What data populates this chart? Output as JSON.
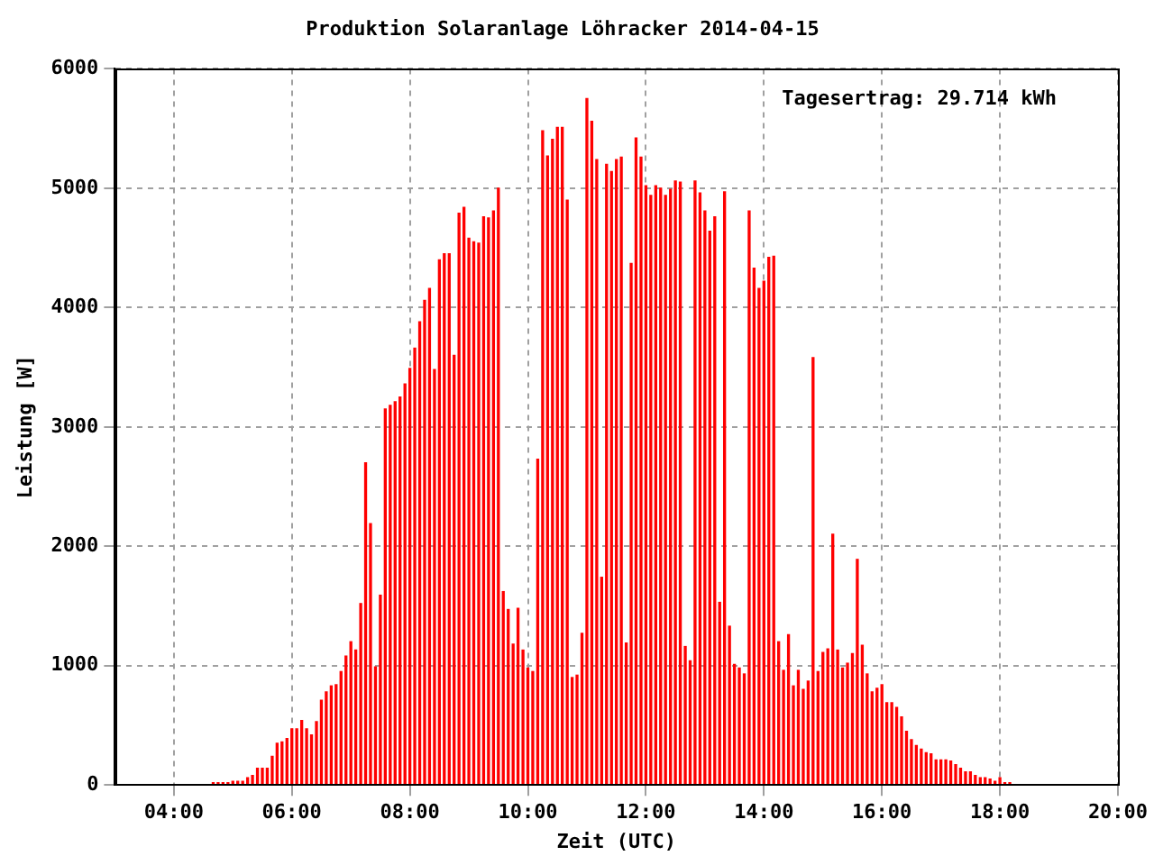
{
  "chart_data": {
    "type": "bar",
    "title": "Produktion Solaranlage Löhracker 2014-04-15",
    "xlabel": "Zeit (UTC)",
    "ylabel": "Leistung [W]",
    "annotations": [
      "Tagesertrag: 29.714 kWh"
    ],
    "x": [
      4.667,
      4.75,
      4.833,
      4.917,
      5,
      5.083,
      5.167,
      5.25,
      5.333,
      5.417,
      5.5,
      5.583,
      5.667,
      5.75,
      5.833,
      5.917,
      6,
      6.083,
      6.167,
      6.25,
      6.333,
      6.417,
      6.5,
      6.583,
      6.667,
      6.75,
      6.833,
      6.917,
      7,
      7.083,
      7.167,
      7.25,
      7.333,
      7.417,
      7.5,
      7.583,
      7.667,
      7.75,
      7.833,
      7.917,
      8,
      8.083,
      8.167,
      8.25,
      8.333,
      8.417,
      8.5,
      8.583,
      8.667,
      8.75,
      8.833,
      8.917,
      9,
      9.083,
      9.167,
      9.25,
      9.333,
      9.417,
      9.5,
      9.583,
      9.667,
      9.75,
      9.833,
      9.917,
      10,
      10.083,
      10.167,
      10.25,
      10.333,
      10.417,
      10.5,
      10.583,
      10.667,
      10.75,
      10.833,
      10.917,
      11,
      11.083,
      11.167,
      11.25,
      11.333,
      11.417,
      11.5,
      11.583,
      11.667,
      11.75,
      11.833,
      11.917,
      12,
      12.083,
      12.167,
      12.25,
      12.333,
      12.417,
      12.5,
      12.583,
      12.667,
      12.75,
      12.833,
      12.917,
      13,
      13.083,
      13.167,
      13.25,
      13.333,
      13.417,
      13.5,
      13.583,
      13.667,
      13.75,
      13.833,
      13.917,
      14,
      14.083,
      14.167,
      14.25,
      14.333,
      14.417,
      14.5,
      14.583,
      14.667,
      14.75,
      14.833,
      14.917,
      15,
      15.083,
      15.167,
      15.25,
      15.333,
      15.417,
      15.5,
      15.583,
      15.667,
      15.75,
      15.833,
      15.917,
      16,
      16.083,
      16.167,
      16.25,
      16.333,
      16.417,
      16.5,
      16.583,
      16.667,
      16.75,
      16.833,
      16.917,
      17,
      17.083,
      17.167,
      17.25,
      17.333,
      17.417,
      17.5,
      17.583,
      17.667,
      17.75,
      17.833,
      17.917,
      18,
      18.083,
      18.167
    ],
    "values": [
      20,
      20,
      20,
      20,
      30,
      30,
      30,
      60,
      80,
      140,
      140,
      140,
      240,
      350,
      360,
      390,
      470,
      470,
      540,
      470,
      420,
      530,
      710,
      780,
      830,
      840,
      950,
      1080,
      1200,
      1130,
      1520,
      2700,
      2190,
      990,
      1590,
      3150,
      3180,
      3210,
      3250,
      3360,
      3490,
      3660,
      3880,
      4060,
      4160,
      3480,
      4400,
      4450,
      4450,
      3600,
      4790,
      4840,
      4580,
      4550,
      4540,
      4760,
      4750,
      4810,
      5000,
      1620,
      1470,
      1180,
      1480,
      1130,
      980,
      950,
      2730,
      5480,
      5270,
      5410,
      5510,
      5510,
      4900,
      900,
      920,
      1270,
      5750,
      5560,
      5240,
      1740,
      5200,
      5140,
      5240,
      5260,
      1190,
      4370,
      5420,
      5260,
      5020,
      4940,
      5020,
      5000,
      4940,
      4990,
      5060,
      5050,
      1160,
      1040,
      5060,
      4960,
      4810,
      4640,
      4760,
      1530,
      4970,
      1330,
      1010,
      980,
      930,
      4810,
      4330,
      4160,
      4220,
      4420,
      4430,
      1200,
      960,
      1260,
      830,
      960,
      800,
      870,
      3580,
      950,
      1110,
      1140,
      2100,
      1130,
      980,
      1020,
      1100,
      1890,
      1170,
      930,
      780,
      810,
      840,
      690,
      690,
      650,
      570,
      450,
      380,
      330,
      300,
      270,
      260,
      210,
      210,
      210,
      200,
      170,
      140,
      110,
      110,
      80,
      60,
      60,
      50,
      30,
      60,
      20,
      20
    ],
    "color": "#ff0000",
    "xlim": [
      3,
      20
    ],
    "xticks": [
      {
        "value": 4,
        "label": "04:00"
      },
      {
        "value": 6,
        "label": "06:00"
      },
      {
        "value": 8,
        "label": "08:00"
      },
      {
        "value": 10,
        "label": "10:00"
      },
      {
        "value": 12,
        "label": "12:00"
      },
      {
        "value": 14,
        "label": "14:00"
      },
      {
        "value": 16,
        "label": "16:00"
      },
      {
        "value": 18,
        "label": "18:00"
      },
      {
        "value": 20,
        "label": "20:00"
      }
    ],
    "ylim": [
      0,
      6000
    ],
    "yticks": [
      0,
      1000,
      2000,
      3000,
      4000,
      5000,
      6000
    ],
    "grid": true,
    "legend": false
  }
}
